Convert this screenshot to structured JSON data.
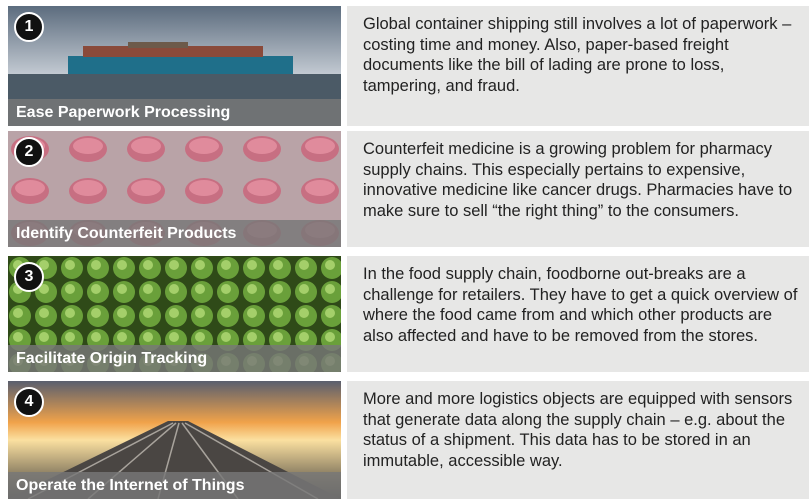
{
  "items": [
    {
      "number": "1",
      "caption": "Ease Paperwork Processing",
      "text": "Global container shipping still involves a lot of paperwork – costing time and money. Also, paper-based freight documents like the bill of lading are prone to loss, tampering, and fraud."
    },
    {
      "number": "2",
      "caption": "Identify Counterfeit Products",
      "text": "Counterfeit medicine is a growing problem for pharmacy supply chains. This especially pertains to expensive, innovative medicine like cancer drugs. Pharmacies have to make sure to sell “the right thing” to the consumers."
    },
    {
      "number": "3",
      "caption": "Facilitate Origin Tracking",
      "text": "In the food supply chain, foodborne out-breaks are a challenge for retailers. They have to get a quick overview of where the food came from and which other products are also affected and have to be removed from the stores."
    },
    {
      "number": "4",
      "caption": "Operate the Internet of Things",
      "text": "More and more logistics objects are equipped with sensors that generate data along the supply chain – e.g. about the status of a shipment. This data has to be stored in an immutable, accessible way."
    }
  ]
}
